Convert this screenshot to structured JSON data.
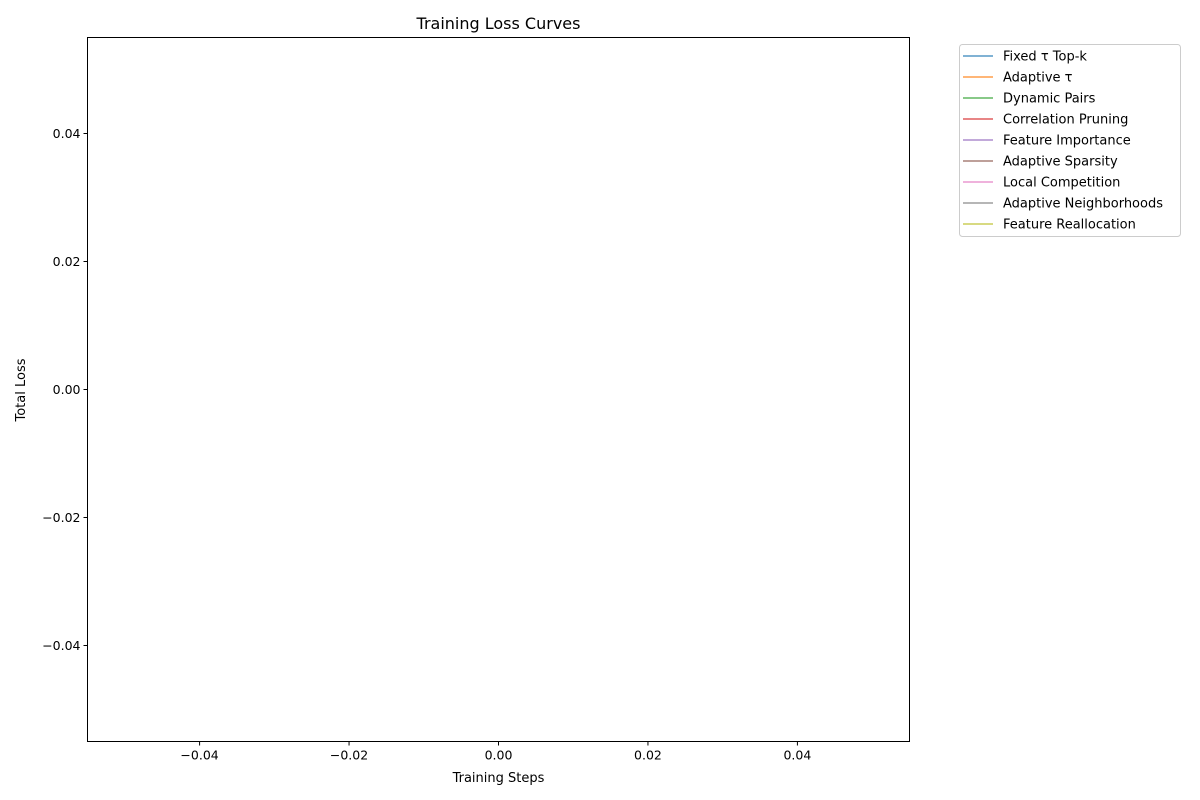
{
  "chart_data": {
    "type": "line",
    "title": "Training Loss Curves",
    "xlabel": "Training Steps",
    "ylabel": "Total Loss",
    "xlim": [
      -0.055,
      0.055
    ],
    "ylim": [
      -0.055,
      0.055
    ],
    "xticks": [
      -0.04,
      -0.02,
      0.0,
      0.02,
      0.04
    ],
    "xtick_labels": [
      "−0.04",
      "−0.02",
      "0.00",
      "0.02",
      "0.04"
    ],
    "yticks": [
      -0.04,
      -0.02,
      0.0,
      0.02,
      0.04
    ],
    "ytick_labels": [
      "−0.04",
      "−0.02",
      "0.00",
      "0.02",
      "0.04"
    ],
    "grid": false,
    "legend_position": "outside-upper-right",
    "series": [
      {
        "name": "Fixed τ Top-k",
        "color": "#1f77b4",
        "x": [],
        "y": []
      },
      {
        "name": "Adaptive τ",
        "color": "#ff7f0e",
        "x": [],
        "y": []
      },
      {
        "name": "Dynamic Pairs",
        "color": "#2ca02c",
        "x": [],
        "y": []
      },
      {
        "name": "Correlation Pruning",
        "color": "#d62728",
        "x": [],
        "y": []
      },
      {
        "name": "Feature Importance",
        "color": "#9467bd",
        "x": [],
        "y": []
      },
      {
        "name": "Adaptive Sparsity",
        "color": "#8c564b",
        "x": [],
        "y": []
      },
      {
        "name": "Local Competition",
        "color": "#e377c2",
        "x": [],
        "y": []
      },
      {
        "name": "Adaptive Neighborhoods",
        "color": "#7f7f7f",
        "x": [],
        "y": []
      },
      {
        "name": "Feature Reallocation",
        "color": "#bcbd22",
        "x": [],
        "y": []
      }
    ]
  }
}
